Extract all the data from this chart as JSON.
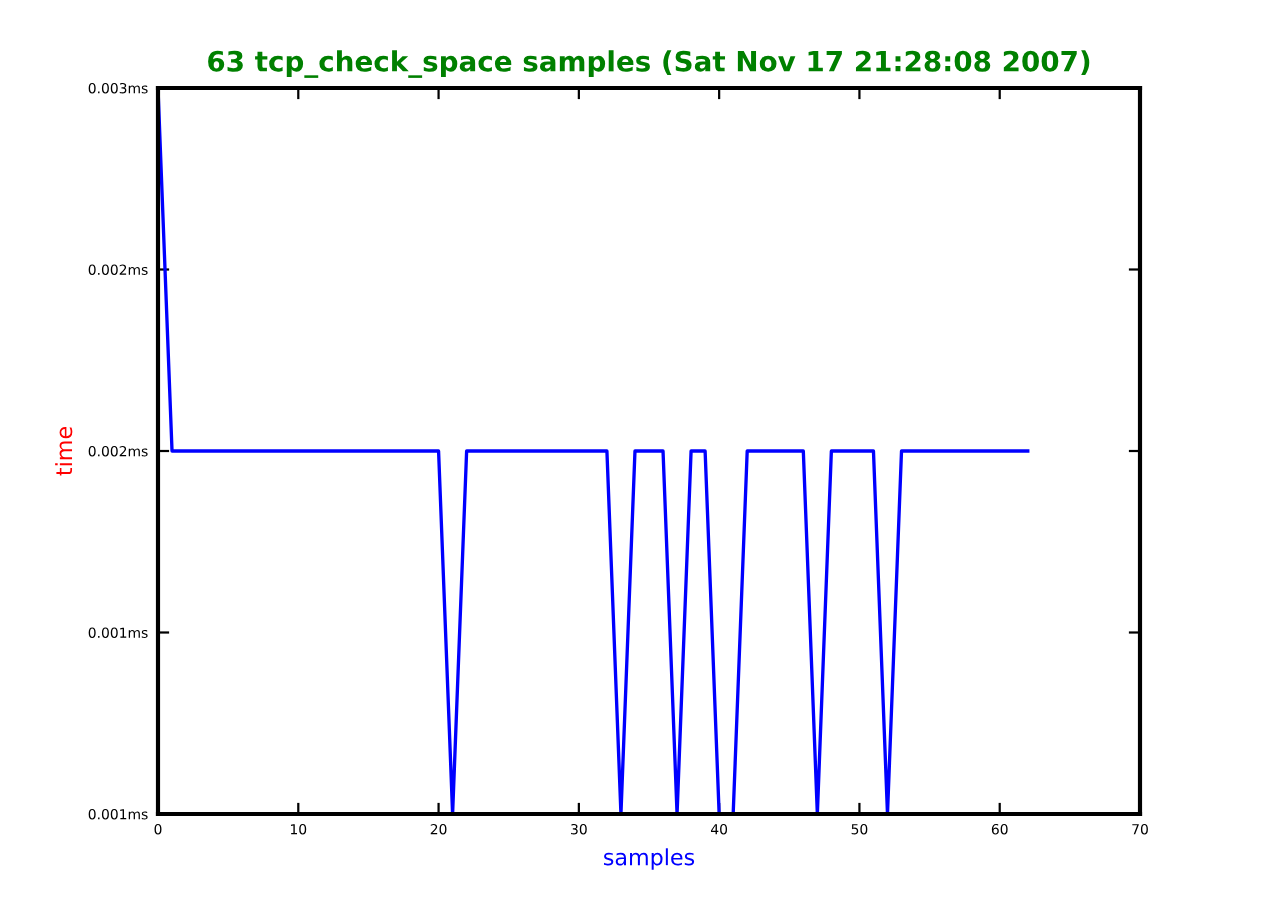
{
  "chart_data": {
    "type": "line",
    "title": "63 tcp_check_space samples (Sat Nov 17 21:28:08 2007)",
    "xlabel": "samples",
    "ylabel": "time",
    "x": [
      0,
      1,
      2,
      3,
      4,
      5,
      6,
      7,
      8,
      9,
      10,
      11,
      12,
      13,
      14,
      15,
      16,
      17,
      18,
      19,
      20,
      21,
      22,
      23,
      24,
      25,
      26,
      27,
      28,
      29,
      30,
      31,
      32,
      33,
      34,
      35,
      36,
      37,
      38,
      39,
      40,
      41,
      42,
      43,
      44,
      45,
      46,
      47,
      48,
      49,
      50,
      51,
      52,
      53,
      54,
      55,
      56,
      57,
      58,
      59,
      60,
      61,
      62
    ],
    "series": [
      {
        "color": "#0000ff",
        "values": [
          0.003,
          0.002,
          0.002,
          0.002,
          0.002,
          0.002,
          0.002,
          0.002,
          0.002,
          0.002,
          0.002,
          0.002,
          0.002,
          0.002,
          0.002,
          0.002,
          0.002,
          0.002,
          0.002,
          0.002,
          0.002,
          0.001,
          0.002,
          0.002,
          0.002,
          0.002,
          0.002,
          0.002,
          0.002,
          0.002,
          0.002,
          0.002,
          0.002,
          0.001,
          0.002,
          0.002,
          0.002,
          0.001,
          0.002,
          0.002,
          0.001,
          0.001,
          0.002,
          0.002,
          0.002,
          0.002,
          0.002,
          0.001,
          0.002,
          0.002,
          0.002,
          0.002,
          0.001,
          0.002,
          0.002,
          0.002,
          0.002,
          0.002,
          0.002,
          0.002,
          0.002,
          0.002,
          0.002
        ]
      }
    ],
    "xlim": [
      0,
      70
    ],
    "xticks": [
      0,
      10,
      20,
      30,
      40,
      50,
      60,
      70
    ],
    "ylim": [
      0.001,
      0.003
    ],
    "yticks": [
      {
        "value": 0.001,
        "label": "0.001ms"
      },
      {
        "value": 0.0015,
        "label": "0.001ms"
      },
      {
        "value": 0.002,
        "label": "0.002ms"
      },
      {
        "value": 0.0025,
        "label": "0.002ms"
      },
      {
        "value": 0.003,
        "label": "0.003ms"
      }
    ],
    "grid": false,
    "legend": false,
    "marker": "none",
    "line_style": "solid"
  }
}
